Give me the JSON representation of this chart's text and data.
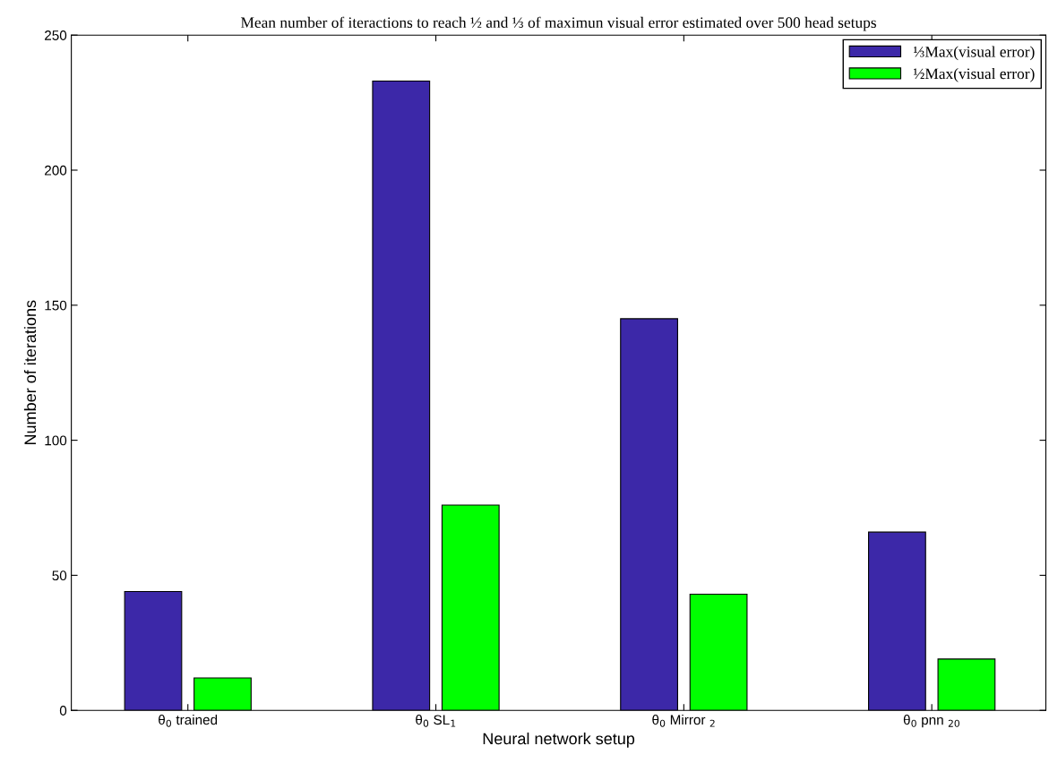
{
  "chart_data": {
    "type": "bar",
    "title": "Mean number of iteractions to reach ½ and ⅓ of maximun visual error estimated over 500 head setups",
    "xlabel": "Neural network setup",
    "ylabel": "Number of iterations",
    "categories": [
      "θ$_{0}$ trained",
      "θ$_{0}$ SL$_{1}$",
      "θ$_{0}$ Mirror $_{2}$",
      "θ$_{0}$ pnn $_{20}$"
    ],
    "series": [
      {
        "name": "⅓Max(visual error)",
        "color": "#3c28a8",
        "values": [
          44,
          233,
          145,
          66
        ]
      },
      {
        "name": "½Max(visual error)",
        "color": "#00ff00",
        "values": [
          12,
          76,
          43,
          19
        ]
      }
    ],
    "ylim": [
      0,
      250
    ],
    "yticks": [
      0,
      50,
      100,
      150,
      200,
      250
    ],
    "grid": false,
    "legend": "top right"
  }
}
